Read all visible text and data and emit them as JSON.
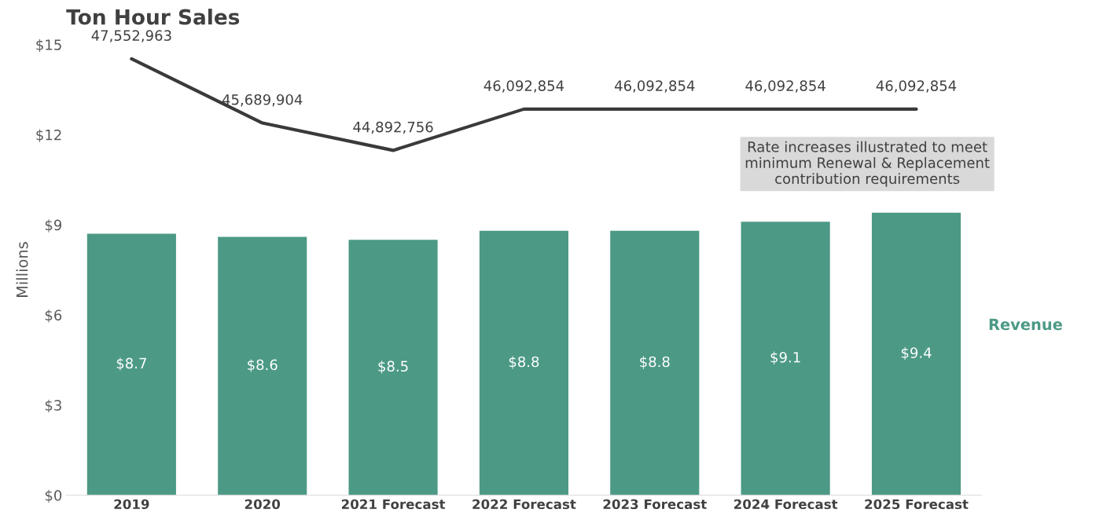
{
  "chart_data": {
    "type": "bar",
    "title": "Ton Hour Sales",
    "ylabel": "Millions",
    "categories": [
      "2019",
      "2020",
      "2021 Forecast",
      "2022 Forecast",
      "2023 Forecast",
      "2024 Forecast",
      "2025 Forecast"
    ],
    "series": [
      {
        "name": "Revenue",
        "color": "#4c9986",
        "values": [
          8.7,
          8.6,
          8.5,
          8.8,
          8.8,
          9.1,
          9.4
        ],
        "value_labels": [
          "$8.7",
          "$8.6",
          "$8.5",
          "$8.8",
          "$8.8",
          "$9.1",
          "$9.4"
        ]
      },
      {
        "type": "line",
        "axis": "y2",
        "color": "#3a3a3a",
        "values": [
          47552963,
          45689904,
          44892756,
          46092854,
          46092854,
          46092854,
          46092854
        ],
        "value_labels": [
          "47,552,963",
          "45,689,904",
          "44,892,756",
          "46,092,854",
          "46,092,854",
          "46,092,854",
          "46,092,854"
        ]
      }
    ],
    "ylim": [
      0,
      15
    ],
    "yticks": [
      {
        "value": 0,
        "label": "$0"
      },
      {
        "value": 3,
        "label": "$3"
      },
      {
        "value": 6,
        "label": "$6"
      },
      {
        "value": 9,
        "label": "$9"
      },
      {
        "value": 12,
        "label": "$12"
      },
      {
        "value": 15,
        "label": "$15"
      }
    ],
    "annotations": [
      "Rate increases illustrated to meet\nminimum Renewal & Replacement\ncontribution requirements"
    ],
    "grid": false,
    "legend": false
  }
}
